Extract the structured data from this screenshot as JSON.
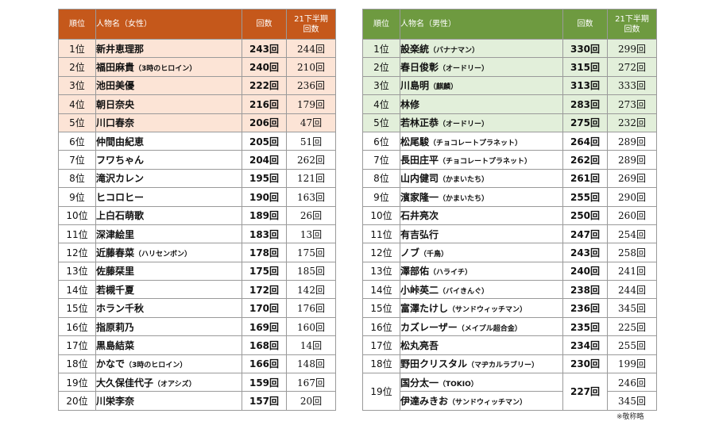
{
  "female": {
    "headers": {
      "rank": "順位",
      "name": "人物名（女性）",
      "count": "回数",
      "prev_line1": "21下半期",
      "prev_line2": "回数"
    },
    "rows": [
      {
        "rank": "1位",
        "name": "新井恵理那",
        "sub": "",
        "count": "243回",
        "prev": "244回"
      },
      {
        "rank": "2位",
        "name": "福田麻貴",
        "sub": "（3時のヒロイン）",
        "count": "240回",
        "prev": "210回"
      },
      {
        "rank": "3位",
        "name": "池田美優",
        "sub": "",
        "count": "222回",
        "prev": "236回"
      },
      {
        "rank": "4位",
        "name": "朝日奈央",
        "sub": "",
        "count": "216回",
        "prev": "179回"
      },
      {
        "rank": "5位",
        "name": "川口春奈",
        "sub": "",
        "count": "206回",
        "prev": "47回"
      },
      {
        "rank": "6位",
        "name": "仲間由紀恵",
        "sub": "",
        "count": "205回",
        "prev": "51回"
      },
      {
        "rank": "7位",
        "name": "フワちゃん",
        "sub": "",
        "count": "204回",
        "prev": "262回"
      },
      {
        "rank": "8位",
        "name": "滝沢カレン",
        "sub": "",
        "count": "195回",
        "prev": "121回"
      },
      {
        "rank": "9位",
        "name": "ヒコロヒー",
        "sub": "",
        "count": "190回",
        "prev": "163回"
      },
      {
        "rank": "10位",
        "name": "上白石萌歌",
        "sub": "",
        "count": "189回",
        "prev": "26回"
      },
      {
        "rank": "11位",
        "name": "深津絵里",
        "sub": "",
        "count": "183回",
        "prev": "13回"
      },
      {
        "rank": "12位",
        "name": "近藤春菜",
        "sub": "（ハリセンボン）",
        "count": "178回",
        "prev": "175回"
      },
      {
        "rank": "13位",
        "name": "佐藤栞里",
        "sub": "",
        "count": "175回",
        "prev": "185回"
      },
      {
        "rank": "14位",
        "name": "若槻千夏",
        "sub": "",
        "count": "172回",
        "prev": "142回"
      },
      {
        "rank": "15位",
        "name": "ホラン千秋",
        "sub": "",
        "count": "170回",
        "prev": "176回"
      },
      {
        "rank": "16位",
        "name": "指原莉乃",
        "sub": "",
        "count": "169回",
        "prev": "160回"
      },
      {
        "rank": "17位",
        "name": "黒島結菜",
        "sub": "",
        "count": "168回",
        "prev": "14回"
      },
      {
        "rank": "18位",
        "name": "かなで",
        "sub": "（3時のヒロイン）",
        "count": "166回",
        "prev": "148回"
      },
      {
        "rank": "19位",
        "name": "大久保佳代子",
        "sub": "（オアシズ）",
        "count": "159回",
        "prev": "167回"
      },
      {
        "rank": "20位",
        "name": "川栄李奈",
        "sub": "",
        "count": "157回",
        "prev": "20回"
      }
    ]
  },
  "male": {
    "headers": {
      "rank": "順位",
      "name": "人物名（男性）",
      "count": "回数",
      "prev_line1": "21下半期",
      "prev_line2": "回数"
    },
    "rows": [
      {
        "rank": "1位",
        "name": "設楽統",
        "sub": "（バナナマン）",
        "count": "330回",
        "prev": "299回"
      },
      {
        "rank": "2位",
        "name": "春日俊彰",
        "sub": "（オードリー）",
        "count": "315回",
        "prev": "272回"
      },
      {
        "rank": "3位",
        "name": "川島明",
        "sub": "（麒麟）",
        "count": "313回",
        "prev": "333回"
      },
      {
        "rank": "4位",
        "name": "林修",
        "sub": "",
        "count": "283回",
        "prev": "273回"
      },
      {
        "rank": "5位",
        "name": "若林正恭",
        "sub": "（オードリー）",
        "count": "275回",
        "prev": "232回"
      },
      {
        "rank": "6位",
        "name": "松尾駿",
        "sub": "（チョコレートプラネット）",
        "count": "264回",
        "prev": "289回"
      },
      {
        "rank": "7位",
        "name": "長田庄平",
        "sub": "（チョコレートプラネット）",
        "count": "262回",
        "prev": "289回"
      },
      {
        "rank": "8位",
        "name": "山内健司",
        "sub": "（かまいたち）",
        "count": "261回",
        "prev": "269回"
      },
      {
        "rank": "9位",
        "name": "濱家隆一",
        "sub": "（かまいたち）",
        "count": "255回",
        "prev": "290回"
      },
      {
        "rank": "10位",
        "name": "石井亮次",
        "sub": "",
        "count": "250回",
        "prev": "260回"
      },
      {
        "rank": "11位",
        "name": "有吉弘行",
        "sub": "",
        "count": "247回",
        "prev": "254回"
      },
      {
        "rank": "12位",
        "name": "ノブ",
        "sub": "（千鳥）",
        "count": "243回",
        "prev": "258回"
      },
      {
        "rank": "13位",
        "name": "澤部佑",
        "sub": "（ハライチ）",
        "count": "240回",
        "prev": "241回"
      },
      {
        "rank": "14位",
        "name": "小峠英二",
        "sub": "（バイきんぐ）",
        "count": "238回",
        "prev": "244回"
      },
      {
        "rank": "15位",
        "name": "富澤たけし",
        "sub": "（サンドウィッチマン）",
        "count": "236回",
        "prev": "345回"
      },
      {
        "rank": "16位",
        "name": "カズレーザー",
        "sub": "（メイプル超合金）",
        "count": "235回",
        "prev": "225回"
      },
      {
        "rank": "17位",
        "name": "松丸亮吾",
        "sub": "",
        "count": "234回",
        "prev": "255回"
      },
      {
        "rank": "18位",
        "name": "野田クリスタル",
        "sub": "（マヂカルラブリー）",
        "count": "230回",
        "prev": "199回"
      },
      {
        "rank": "19位",
        "name": "国分太一",
        "sub": "（TOKIO）",
        "count": "227回",
        "prev": "246回"
      },
      {
        "rank": "19位",
        "name": "伊達みきお",
        "sub": "（サンドウィッチマン）",
        "count": "227回",
        "prev": "345回"
      }
    ]
  },
  "note": "※敬称略"
}
